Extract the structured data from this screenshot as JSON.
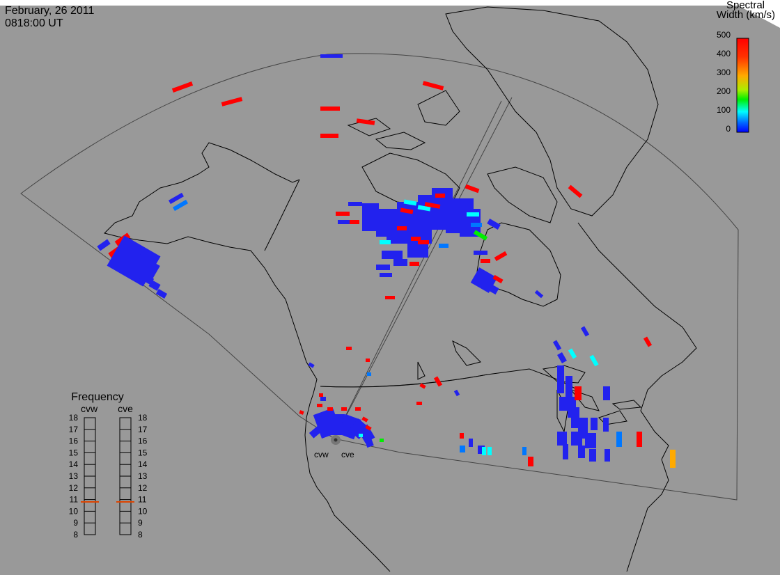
{
  "header": {
    "date": "February, 26 2011",
    "time": "0818:00 UT"
  },
  "colorbar": {
    "title_line1": "Spectral",
    "title_line2": "Width (km/s)",
    "ticks": [
      "500",
      "400",
      "300",
      "200",
      "100",
      "0"
    ],
    "stops": [
      "#ff0000",
      "#ffaa00",
      "#ffff00",
      "#00ee00",
      "#00ffff",
      "#0066ff",
      "#0000ff"
    ]
  },
  "frequency_panel": {
    "title": "Frequency",
    "columns": [
      "cvw",
      "cve"
    ],
    "ticks": [
      "18",
      "17",
      "16",
      "15",
      "14",
      "13",
      "12",
      "11",
      "10",
      "9",
      "8"
    ],
    "cvw_value": 10.8,
    "cve_value": 10.8,
    "marker_color": "#dd4400"
  },
  "radar": {
    "sites": [
      "cvw",
      "cve"
    ]
  },
  "colors": {
    "background": "#999999",
    "coastline": "#000000",
    "fov": "#444444",
    "red": "#ff0000",
    "blue": "#2222ee",
    "lightblue": "#0077ff",
    "cyan": "#00ffff",
    "green": "#00ee00",
    "orange": "#ffaa00"
  }
}
